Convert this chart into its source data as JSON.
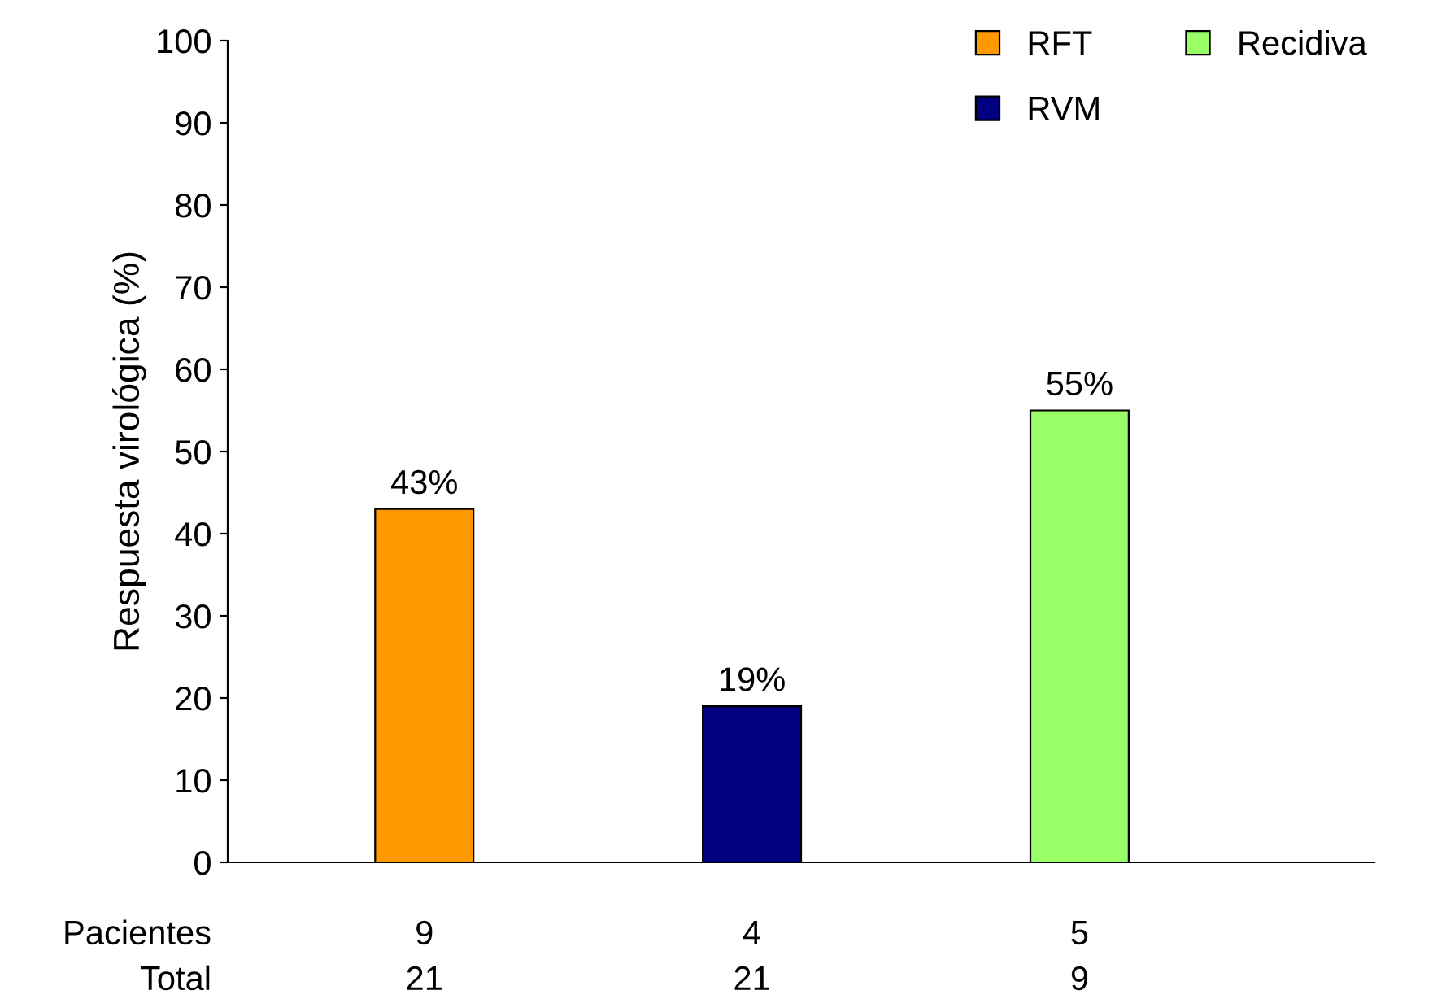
{
  "chart_data": {
    "type": "bar",
    "ylabel": "Respuesta virológica (%)",
    "categories": [
      null,
      null,
      null
    ],
    "series": [
      {
        "name": "RFT",
        "color": "#ff9900",
        "values": [
          43,
          null,
          null
        ],
        "value_labels": [
          "43%",
          null,
          null
        ]
      },
      {
        "name": "RVM",
        "color": "#000080",
        "values": [
          null,
          19,
          null
        ],
        "value_labels": [
          null,
          "19%",
          null
        ]
      },
      {
        "name": "Recidiva",
        "color": "#99ff66",
        "values": [
          null,
          null,
          55
        ],
        "value_labels": [
          null,
          null,
          "55%"
        ]
      }
    ],
    "ylim": [
      0,
      100
    ],
    "yticks": [
      0,
      10,
      20,
      30,
      40,
      50,
      60,
      70,
      80,
      90,
      100
    ],
    "grid": false,
    "legend": "top right",
    "annotations": [
      "Pacientes",
      "9",
      "4",
      "5",
      "Total",
      "21",
      "21",
      "9"
    ]
  }
}
